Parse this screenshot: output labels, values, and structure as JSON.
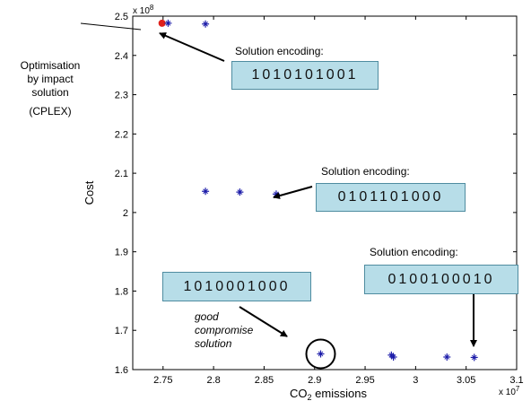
{
  "chart_data": {
    "type": "scatter",
    "xlabel": "CO2 emissions",
    "xlabel_parts": {
      "main": "CO",
      "sub": "2",
      "rest": " emissions"
    },
    "ylabel": "Cost",
    "x_multiplier": "x 10",
    "x_multiplier_exp": "7",
    "y_multiplier": "x 10",
    "y_multiplier_exp": "8",
    "xlim": [
      2.72,
      3.1
    ],
    "ylim": [
      1.6,
      2.5
    ],
    "xticks": [
      "2.75",
      "2.8",
      "2.85",
      "2.9",
      "2.95",
      "3",
      "3.05",
      "3.1"
    ],
    "yticks": [
      "1.6",
      "1.7",
      "1.8",
      "1.9",
      "2",
      "2.1",
      "2.2",
      "2.3",
      "2.4",
      "2.5"
    ],
    "xtick_values": [
      2.75,
      2.8,
      2.85,
      2.9,
      2.95,
      3.0,
      3.05,
      3.1
    ],
    "ytick_values": [
      1.6,
      1.7,
      1.8,
      1.9,
      2.0,
      2.1,
      2.2,
      2.3,
      2.4,
      2.5
    ],
    "grid": false,
    "points": [
      {
        "x": 2.755,
        "y": 2.482
      },
      {
        "x": 2.792,
        "y": 2.48
      },
      {
        "x": 2.792,
        "y": 2.054
      },
      {
        "x": 2.826,
        "y": 2.052
      },
      {
        "x": 2.862,
        "y": 2.047
      },
      {
        "x": 2.906,
        "y": 1.64
      },
      {
        "x": 2.976,
        "y": 1.637
      },
      {
        "x": 2.978,
        "y": 1.632
      },
      {
        "x": 3.031,
        "y": 1.632
      },
      {
        "x": 3.058,
        "y": 1.631
      }
    ],
    "highlight_point": {
      "x": 2.749,
      "y": 2.482,
      "color": "#e0201a"
    },
    "circled_point": {
      "x": 2.906,
      "y": 1.64
    },
    "marker_color": "#1a1aa8"
  },
  "annotations": {
    "optimisation_line1": "Optimisation",
    "optimisation_line2": "by impact",
    "optimisation_line3": "solution",
    "cplex": "(CPLEX)",
    "encoding_label_1": "Solution encoding:",
    "encoding_code_1": "1010101001",
    "encoding_label_2": "Solution encoding:",
    "encoding_code_2": "0101101000",
    "encoding_label_3": "Solution encoding:",
    "encoding_code_3": "0100100010",
    "compromise_code": "1010001000",
    "compromise_line1": "good",
    "compromise_line2": "compromise",
    "compromise_line3": "solution"
  }
}
